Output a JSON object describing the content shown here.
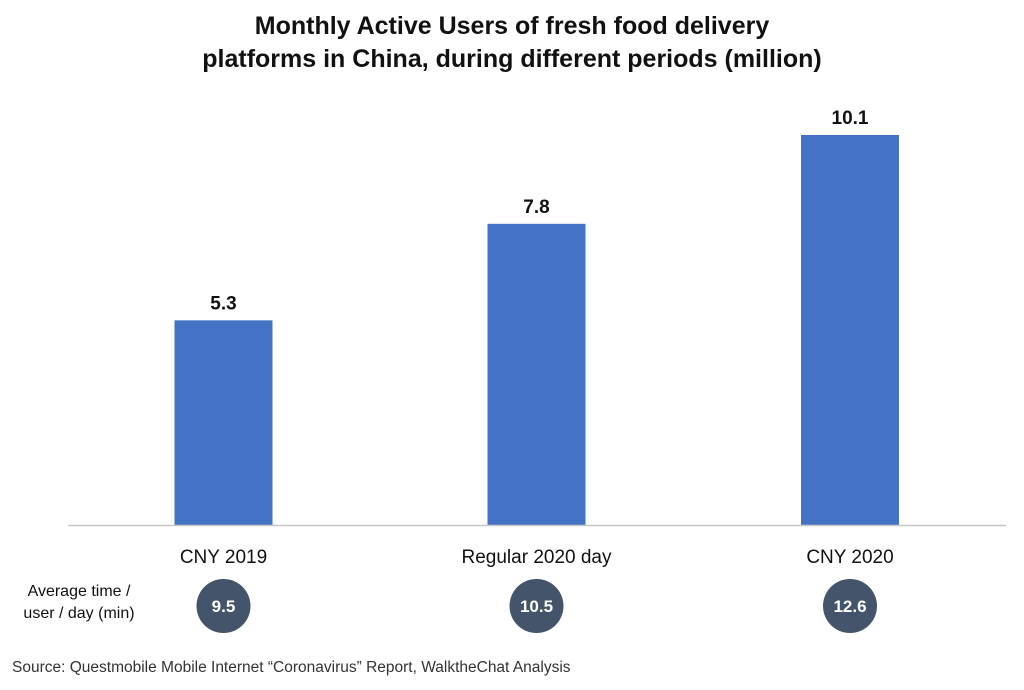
{
  "chart_data": {
    "type": "bar",
    "title_lines": [
      "Monthly Active Users of fresh food delivery",
      "platforms in China, during different periods (million)"
    ],
    "categories": [
      "CNY 2019",
      "Regular 2020 day",
      "CNY 2020"
    ],
    "values": [
      5.3,
      7.8,
      10.1
    ],
    "value_labels": [
      "5.3",
      "7.8",
      "10.1"
    ],
    "ylim": [
      0,
      10.6
    ],
    "grid": false,
    "bar_color": "#4472C4",
    "secondary_row": {
      "label_lines": [
        "Average time /",
        "user / day (min)"
      ],
      "values": [
        9.5,
        10.5,
        12.6
      ],
      "value_labels": [
        "9.5",
        "10.5",
        "12.6"
      ],
      "badge_color": "#44546A"
    },
    "source": "Source: Questmobile Mobile Internet “Coronavirus” Report, WalktheChat Analysis"
  }
}
